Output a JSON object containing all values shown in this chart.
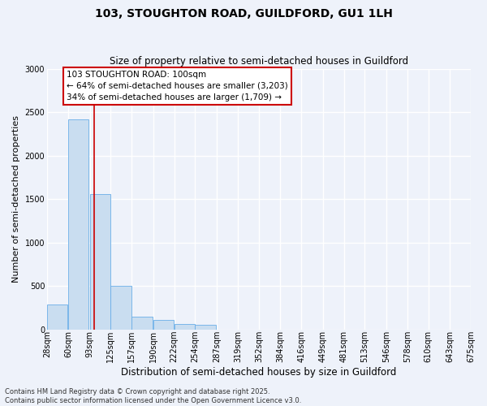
{
  "title_line1": "103, STOUGHTON ROAD, GUILDFORD, GU1 1LH",
  "title_line2": "Size of property relative to semi-detached houses in Guildford",
  "xlabel": "Distribution of semi-detached houses by size in Guildford",
  "ylabel": "Number of semi-detached properties",
  "annotation_title": "103 STOUGHTON ROAD: 100sqm",
  "annotation_line2": "← 64% of semi-detached houses are smaller (3,203)",
  "annotation_line3": "34% of semi-detached houses are larger (1,709) →",
  "footnote_line1": "Contains HM Land Registry data © Crown copyright and database right 2025.",
  "footnote_line2": "Contains public sector information licensed under the Open Government Licence v3.0.",
  "bar_color": "#c9ddf0",
  "bar_edge_color": "#6aaee8",
  "vline_color": "#cc0000",
  "vline_x": 100,
  "bins": [
    28,
    60,
    93,
    125,
    157,
    190,
    222,
    254,
    287,
    319,
    352,
    384,
    416,
    449,
    481,
    513,
    546,
    578,
    610,
    643,
    675
  ],
  "values": [
    290,
    2420,
    1555,
    500,
    150,
    105,
    62,
    48,
    0,
    0,
    0,
    0,
    0,
    0,
    0,
    0,
    0,
    0,
    0,
    0
  ],
  "ylim": [
    0,
    3000
  ],
  "yticks": [
    0,
    500,
    1000,
    1500,
    2000,
    2500,
    3000
  ],
  "background_color": "#eef2fa",
  "plot_background": "#eef2fa",
  "grid_color": "#ffffff",
  "annotation_box_facecolor": "#ffffff",
  "annotation_box_edgecolor": "#cc0000",
  "title1_fontsize": 10,
  "title2_fontsize": 8.5,
  "ylabel_fontsize": 8,
  "xlabel_fontsize": 8.5,
  "tick_fontsize": 7,
  "annot_fontsize": 7.5,
  "footnote_fontsize": 6
}
